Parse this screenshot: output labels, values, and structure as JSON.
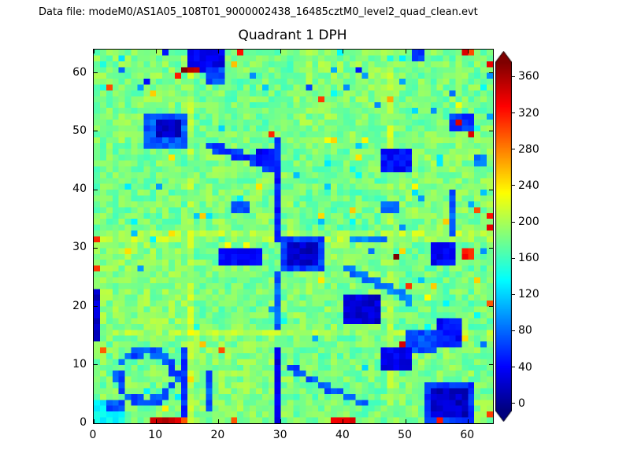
{
  "header": {
    "datafile_label": "Data file: modeM0/AS1A05_108T01_9000002438_16485cztM0_level2_quad_clean.evt"
  },
  "chart_data": {
    "type": "heatmap",
    "title": "Quadrant 1 DPH",
    "grid_size": 64,
    "x_range": [
      0,
      64
    ],
    "y_range": [
      0,
      64
    ],
    "xticks": [
      0,
      10,
      20,
      30,
      40,
      50,
      60
    ],
    "yticks": [
      0,
      10,
      20,
      30,
      40,
      50,
      60
    ],
    "colormap": "jet",
    "grid": false,
    "colorbar": {
      "ticks": [
        0,
        40,
        80,
        120,
        160,
        200,
        240,
        280,
        320,
        360
      ],
      "vmin": -8,
      "vmax": 376,
      "extend": "both",
      "position": "right"
    },
    "background": {
      "mean": 178,
      "noise": 20,
      "module_grid": 4,
      "module_offsets": [
        [
          4,
          8,
          2,
          6
        ],
        [
          10,
          3,
          7,
          1
        ],
        [
          2,
          6,
          0,
          8
        ],
        [
          6,
          1,
          9,
          3
        ]
      ]
    },
    "bands": {
      "rows": [
        15,
        31,
        32
      ],
      "cols": [
        15,
        47
      ],
      "boost": 16
    },
    "seed": 42,
    "features": [
      {
        "t": "rect",
        "x": 15,
        "y": 60,
        "w": 6,
        "h": 4,
        "v": 20
      },
      {
        "t": "rect",
        "x": 18,
        "y": 58,
        "w": 3,
        "h": 3,
        "v": 55
      },
      {
        "t": "rect",
        "x": 14,
        "y": 60,
        "w": 3,
        "h": 1,
        "v": 360
      },
      {
        "t": "point",
        "x": 13,
        "y": 59,
        "v": 310
      },
      {
        "t": "point",
        "x": 8,
        "y": 58,
        "v": 40
      },
      {
        "t": "point",
        "x": 4,
        "y": 60,
        "v": 70
      },
      {
        "t": "point",
        "x": 11,
        "y": 63,
        "v": 30
      },
      {
        "t": "point",
        "x": 42,
        "y": 60,
        "v": 25
      },
      {
        "t": "rect",
        "x": 51,
        "y": 62,
        "w": 2,
        "h": 2,
        "v": 50
      },
      {
        "t": "point",
        "x": 59,
        "y": 63,
        "v": 340
      },
      {
        "t": "point",
        "x": 60,
        "y": 63,
        "v": 300
      },
      {
        "t": "point",
        "x": 63,
        "y": 61,
        "v": 330
      },
      {
        "t": "rect",
        "x": 8,
        "y": 47,
        "w": 7,
        "h": 6,
        "v": 60
      },
      {
        "t": "rect",
        "x": 10,
        "y": 49,
        "w": 4,
        "h": 3,
        "v": 8
      },
      {
        "t": "line",
        "x1": 18,
        "y1": 47,
        "x2": 24,
        "y2": 45,
        "w": 1.4,
        "v": 45
      },
      {
        "t": "line",
        "x1": 24,
        "y1": 45,
        "x2": 28,
        "y2": 43,
        "w": 1.4,
        "v": 45
      },
      {
        "t": "rect",
        "x": 26,
        "y": 44,
        "w": 3,
        "h": 3,
        "v": 25
      },
      {
        "t": "line",
        "x1": 29,
        "y1": 31,
        "x2": 29,
        "y2": 48,
        "w": 1.1,
        "v": 35
      },
      {
        "t": "point",
        "x": 28,
        "y": 49,
        "v": 300
      },
      {
        "t": "rect",
        "x": 46,
        "y": 43,
        "w": 5,
        "h": 4,
        "v": 30
      },
      {
        "t": "rect",
        "x": 57,
        "y": 50,
        "w": 4,
        "h": 3,
        "v": 45
      },
      {
        "t": "point",
        "x": 58,
        "y": 51,
        "v": 330
      },
      {
        "t": "point",
        "x": 60,
        "y": 49,
        "v": 350
      },
      {
        "t": "point",
        "x": 34,
        "y": 57,
        "v": 60
      },
      {
        "t": "point",
        "x": 57,
        "y": 56,
        "v": 70
      },
      {
        "t": "rect",
        "x": 20,
        "y": 27,
        "w": 7,
        "h": 3,
        "v": 30
      },
      {
        "t": "rect",
        "x": 30,
        "y": 26,
        "w": 7,
        "h": 6,
        "v": 50
      },
      {
        "t": "rect",
        "x": 31,
        "y": 27,
        "w": 5,
        "h": 4,
        "v": 5
      },
      {
        "t": "rect",
        "x": 54,
        "y": 27,
        "w": 4,
        "h": 4,
        "v": 25
      },
      {
        "t": "rect",
        "x": 59,
        "y": 28,
        "w": 2,
        "h": 2,
        "v": 320
      },
      {
        "t": "point",
        "x": 48,
        "y": 28,
        "v": 370
      },
      {
        "t": "line",
        "x1": 57,
        "y1": 32,
        "x2": 57,
        "y2": 39,
        "w": 1.0,
        "v": 60
      },
      {
        "t": "rect",
        "x": 46,
        "y": 36,
        "w": 3,
        "h": 2,
        "v": 65
      },
      {
        "t": "rect",
        "x": 22,
        "y": 36,
        "w": 3,
        "h": 2,
        "v": 60
      },
      {
        "t": "line",
        "x1": 41,
        "y1": 31,
        "x2": 46,
        "y2": 31,
        "w": 0.9,
        "v": 75
      },
      {
        "t": "point",
        "x": 44,
        "y": 29,
        "v": 70
      },
      {
        "t": "point",
        "x": 63,
        "y": 35,
        "v": 310
      },
      {
        "t": "point",
        "x": 63,
        "y": 33,
        "v": 330
      },
      {
        "t": "line",
        "x1": 40,
        "y1": 26,
        "x2": 50,
        "y2": 21,
        "w": 1.1,
        "v": 70
      },
      {
        "t": "rect",
        "x": 40,
        "y": 17,
        "w": 6,
        "h": 5,
        "v": 10
      },
      {
        "t": "line",
        "x1": 29,
        "y1": 16,
        "x2": 29,
        "y2": 25,
        "w": 1.0,
        "v": 60
      },
      {
        "t": "rect",
        "x": 0,
        "y": 14,
        "w": 1,
        "h": 9,
        "v": 10
      },
      {
        "t": "point",
        "x": 0,
        "y": 26,
        "v": 320
      },
      {
        "t": "point",
        "x": 0,
        "y": 31,
        "v": 300
      },
      {
        "t": "rect",
        "x": 50,
        "y": 12,
        "w": 5,
        "h": 4,
        "v": 55
      },
      {
        "t": "rect",
        "x": 55,
        "y": 13,
        "w": 4,
        "h": 5,
        "v": 30
      },
      {
        "t": "point",
        "x": 49,
        "y": 13,
        "v": 330
      },
      {
        "t": "rect",
        "x": 46,
        "y": 9,
        "w": 5,
        "h": 4,
        "v": 20
      },
      {
        "t": "point",
        "x": 62,
        "y": 13,
        "v": 60
      },
      {
        "t": "ring",
        "cx": 8.5,
        "cy": 8,
        "r": 4.3,
        "v": 55
      },
      {
        "t": "line",
        "x1": 14,
        "y1": 1,
        "x2": 14,
        "y2": 12,
        "w": 1.2,
        "v": 40
      },
      {
        "t": "line",
        "x1": 18,
        "y1": 2,
        "x2": 18,
        "y2": 8,
        "w": 1.0,
        "v": 60
      },
      {
        "t": "line",
        "x1": 29,
        "y1": 0,
        "x2": 29,
        "y2": 12,
        "w": 1.8,
        "v": 20
      },
      {
        "t": "line",
        "x1": 31,
        "y1": 9,
        "x2": 38,
        "y2": 5,
        "w": 1.1,
        "v": 55
      },
      {
        "t": "line",
        "x1": 38,
        "y1": 5,
        "x2": 43,
        "y2": 3,
        "w": 1.0,
        "v": 60
      },
      {
        "t": "rect",
        "x": 0,
        "y": 0,
        "w": 5,
        "h": 4,
        "v": 120
      },
      {
        "t": "rect",
        "x": 2,
        "y": 2,
        "w": 3,
        "h": 2,
        "v": 55
      },
      {
        "t": "rect",
        "x": 53,
        "y": 0,
        "w": 8,
        "h": 7,
        "v": 45
      },
      {
        "t": "rect",
        "x": 54,
        "y": 1,
        "w": 6,
        "h": 5,
        "v": 5
      },
      {
        "t": "point",
        "x": 63,
        "y": 1,
        "v": 320
      },
      {
        "t": "rect",
        "x": 9,
        "y": 0,
        "w": 5,
        "h": 1,
        "v": 350
      },
      {
        "t": "rect",
        "x": 38,
        "y": 0,
        "w": 4,
        "h": 1,
        "v": 340
      },
      {
        "t": "point",
        "x": 55,
        "y": 0,
        "v": 310
      },
      {
        "t": "point",
        "x": 22,
        "y": 0,
        "v": 300
      },
      {
        "t": "point",
        "x": 63,
        "y": 20,
        "v": 300
      },
      {
        "t": "point",
        "x": 23,
        "y": 63,
        "v": 320
      },
      {
        "t": "rect",
        "x": 61,
        "y": 44,
        "w": 2,
        "h": 2,
        "v": 65
      }
    ]
  }
}
